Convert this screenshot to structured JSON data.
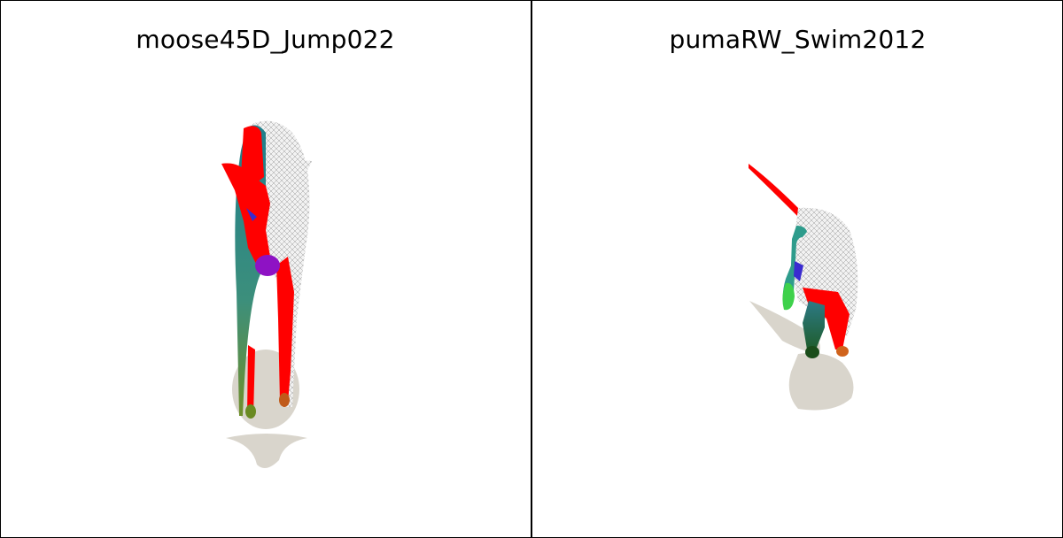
{
  "panels": [
    {
      "title": "moose45D_Jump022"
    },
    {
      "title": "pumaRW_Swim2012"
    }
  ],
  "colors": {
    "background": "#ffffff",
    "shadow": "#d9d5cc",
    "mesh": "#e8e8e8",
    "red": "#ff0000",
    "teal": "#2e7d85",
    "purple": "#8e12c4",
    "green": "#3ed14b"
  }
}
